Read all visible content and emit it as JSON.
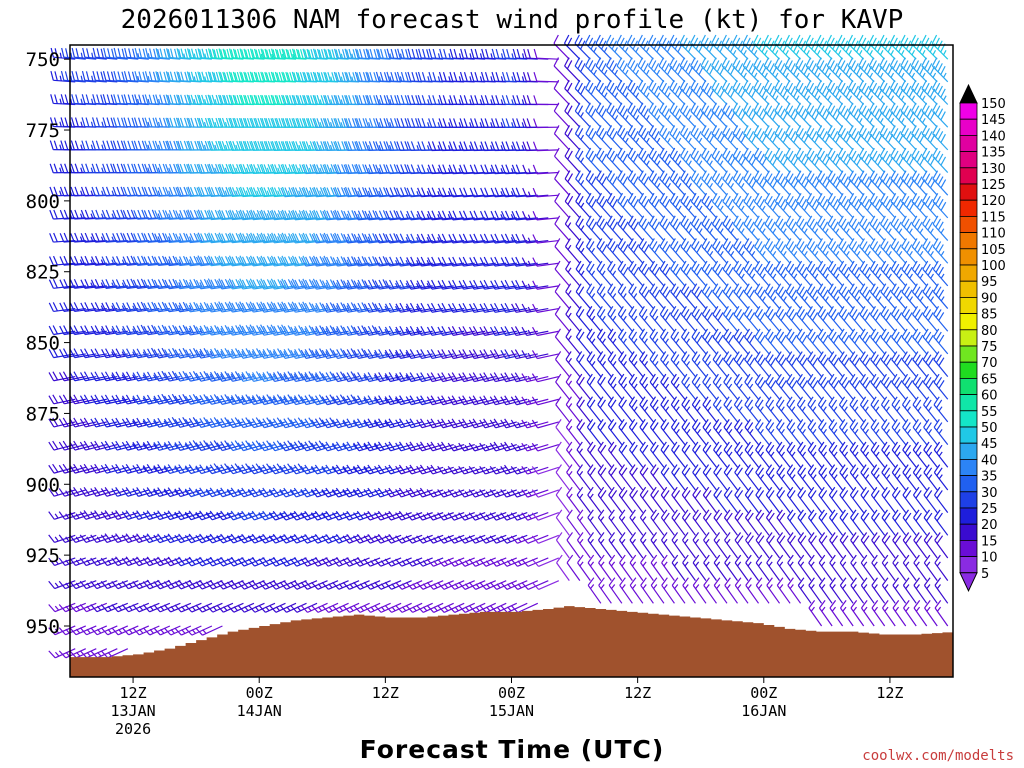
{
  "chart_data": {
    "type": "wind-barb-time-height",
    "title": "2026011306 NAM forecast wind profile (kt) for KAVP",
    "xlabel": "Forecast Time (UTC)",
    "ylabel": "",
    "credit": "coolwx.com/modelts",
    "x_range_hours": [
      0,
      84
    ],
    "y_range_hpa": [
      745,
      968
    ],
    "y_ticks": [
      750,
      775,
      800,
      825,
      850,
      875,
      900,
      925,
      950
    ],
    "x_ticks": [
      {
        "hour": 6,
        "line1": "12Z",
        "line2": "13JAN",
        "line3": "2026"
      },
      {
        "hour": 18,
        "line1": "00Z",
        "line2": "14JAN",
        "line3": ""
      },
      {
        "hour": 30,
        "line1": "12Z",
        "line2": "",
        "line3": ""
      },
      {
        "hour": 42,
        "line1": "00Z",
        "line2": "15JAN",
        "line3": ""
      },
      {
        "hour": 54,
        "line1": "12Z",
        "line2": "",
        "line3": ""
      },
      {
        "hour": 66,
        "line1": "00Z",
        "line2": "16JAN",
        "line3": ""
      },
      {
        "hour": 78,
        "line1": "12Z",
        "line2": "",
        "line3": ""
      }
    ],
    "surface_pressure": [
      {
        "h": 0,
        "p": 961
      },
      {
        "h": 3,
        "p": 961
      },
      {
        "h": 6,
        "p": 960
      },
      {
        "h": 9,
        "p": 958
      },
      {
        "h": 12,
        "p": 955
      },
      {
        "h": 15,
        "p": 952
      },
      {
        "h": 18,
        "p": 950
      },
      {
        "h": 21,
        "p": 948
      },
      {
        "h": 24,
        "p": 947
      },
      {
        "h": 27,
        "p": 946
      },
      {
        "h": 30,
        "p": 947
      },
      {
        "h": 33,
        "p": 947
      },
      {
        "h": 36,
        "p": 946
      },
      {
        "h": 39,
        "p": 945
      },
      {
        "h": 42,
        "p": 945
      },
      {
        "h": 45,
        "p": 944
      },
      {
        "h": 47,
        "p": 943
      },
      {
        "h": 50,
        "p": 944
      },
      {
        "h": 53,
        "p": 945
      },
      {
        "h": 56,
        "p": 946
      },
      {
        "h": 59,
        "p": 947
      },
      {
        "h": 62,
        "p": 948
      },
      {
        "h": 65,
        "p": 949
      },
      {
        "h": 68,
        "p": 951
      },
      {
        "h": 71,
        "p": 952
      },
      {
        "h": 74,
        "p": 952
      },
      {
        "h": 77,
        "p": 953
      },
      {
        "h": 80,
        "p": 953
      },
      {
        "h": 84,
        "p": 952
      }
    ],
    "color_scale": {
      "levels": [
        5,
        10,
        15,
        20,
        25,
        30,
        35,
        40,
        45,
        50,
        55,
        60,
        65,
        70,
        75,
        80,
        85,
        90,
        95,
        100,
        105,
        110,
        115,
        120,
        125,
        130,
        135,
        140,
        145,
        150
      ],
      "colors": [
        "#8a2be2",
        "#6a0dd6",
        "#3a0bd0",
        "#1e1edc",
        "#1e40e6",
        "#2060f0",
        "#2c84f6",
        "#2ca8f0",
        "#20c8e6",
        "#14e6c8",
        "#10e6a8",
        "#10e070",
        "#20dc20",
        "#70e620",
        "#c8f014",
        "#f0f000",
        "#f0d800",
        "#f0c000",
        "#f0a800",
        "#f09000",
        "#f07800",
        "#f05000",
        "#f02800",
        "#e01010",
        "#e00050",
        "#e00080",
        "#e000a0",
        "#e800c8",
        "#f000e8",
        "#000000"
      ]
    },
    "wind_model": {
      "frontal_hour": 47,
      "pre_front_direction_deg_surface": 245,
      "pre_front_direction_deg_aloft": 275,
      "post_front_direction_deg_surface": 325,
      "post_front_direction_deg_aloft": 315,
      "max_speed_kt_aloft": 55,
      "min_speed_kt_near_front": 8,
      "surface_speed_kt": 12
    }
  }
}
